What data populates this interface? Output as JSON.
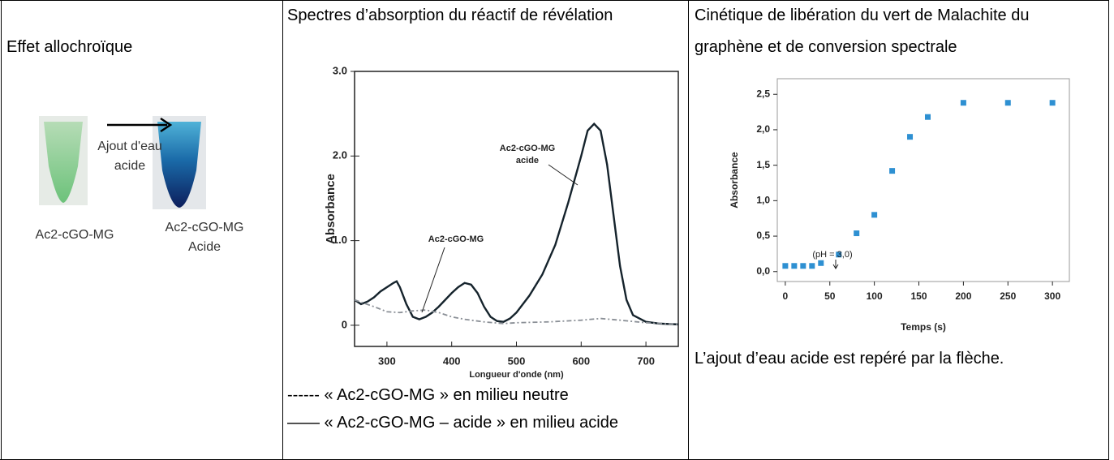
{
  "table": {
    "headers": [
      "Effet allochroïque",
      "Spectres d’absorption du réactif de révélation",
      "Cinétique de libération du vert de Malachite du graphène et de conversion spectrale"
    ],
    "col2_caption": [
      "------ « Ac2-cGO-MG » en milieu neutre",
      "—— « Ac2-cGO-MG – acide » en milieu acide"
    ],
    "col3_caption": "L’ajout d’eau acide est repéré par la flèche."
  },
  "figure": {
    "start_label": "Ac2-cGO-MG",
    "end_label": [
      "Ac2-cGO-MG",
      "Acide"
    ],
    "arrow_label": [
      "Ajout d'eau",
      "acide"
    ]
  },
  "chart_data": [
    {
      "type": "line",
      "xlabel": "Longueur d'onde (nm)",
      "ylabel": "Absorbance",
      "xlim": [
        250,
        750
      ],
      "ylim": [
        -0.25,
        3.0
      ],
      "xticks": [
        300,
        400,
        500,
        600,
        700
      ],
      "yticks": [
        0,
        {
          "value": 1,
          "label": "1.0"
        },
        {
          "value": 2,
          "label": "2.0"
        },
        {
          "value": 3,
          "label": "3.0"
        }
      ],
      "annotations": [
        [
          "Ac2-cGO-MG",
          "acide"
        ],
        [
          "Ac2-cGO-MG"
        ]
      ],
      "series": [
        {
          "color": "#15232c",
          "linestyle": "solid",
          "x": [
            250,
            260,
            270,
            280,
            290,
            300,
            310,
            315,
            320,
            330,
            340,
            350,
            360,
            370,
            380,
            390,
            400,
            410,
            420,
            430,
            440,
            450,
            460,
            470,
            480,
            490,
            500,
            520,
            540,
            560,
            580,
            600,
            610,
            620,
            630,
            640,
            650,
            660,
            670,
            680,
            700,
            720,
            750
          ],
          "values": [
            0.3,
            0.25,
            0.28,
            0.33,
            0.4,
            0.45,
            0.5,
            0.52,
            0.45,
            0.25,
            0.1,
            0.07,
            0.1,
            0.15,
            0.22,
            0.3,
            0.38,
            0.45,
            0.5,
            0.48,
            0.38,
            0.22,
            0.1,
            0.05,
            0.04,
            0.08,
            0.15,
            0.35,
            0.6,
            0.95,
            1.45,
            2.0,
            2.3,
            2.38,
            2.3,
            1.9,
            1.3,
            0.7,
            0.3,
            0.12,
            0.04,
            0.02,
            0.01
          ]
        },
        {
          "color": "#8a8f96",
          "linestyle": "dashed",
          "x": [
            250,
            280,
            300,
            320,
            340,
            360,
            380,
            400,
            420,
            450,
            480,
            500,
            550,
            600,
            630,
            660,
            700,
            750
          ],
          "values": [
            0.3,
            0.22,
            0.16,
            0.15,
            0.17,
            0.18,
            0.15,
            0.1,
            0.07,
            0.04,
            0.02,
            0.03,
            0.04,
            0.06,
            0.08,
            0.06,
            0.03,
            0.01
          ]
        }
      ]
    },
    {
      "type": "scatter",
      "xlabel": "Temps (s)",
      "ylabel": "Absorbance",
      "xlim": [
        -9,
        319
      ],
      "ylim": [
        -0.14,
        2.72
      ],
      "xticks": [
        0,
        50,
        100,
        150,
        200,
        250,
        300
      ],
      "yticks": [
        {
          "value": 0,
          "label": "0,0"
        },
        {
          "value": 0.5,
          "label": "0,5"
        },
        {
          "value": 1,
          "label": "1,0"
        },
        {
          "value": 1.5,
          "label": "1,5"
        },
        {
          "value": 2,
          "label": "2,0"
        },
        {
          "value": 2.5,
          "label": "2,5"
        }
      ],
      "annotations": [
        [
          "(pH = 3,0)"
        ]
      ],
      "series": [
        {
          "color": "#2e90d2",
          "x": [
            0,
            10,
            20,
            30,
            40,
            60,
            80,
            100,
            120,
            140,
            160,
            200,
            250,
            300
          ],
          "values": [
            0.08,
            0.08,
            0.08,
            0.08,
            0.12,
            0.24,
            0.54,
            0.8,
            1.42,
            1.9,
            2.18,
            2.38,
            2.38,
            2.38
          ]
        }
      ]
    }
  ]
}
